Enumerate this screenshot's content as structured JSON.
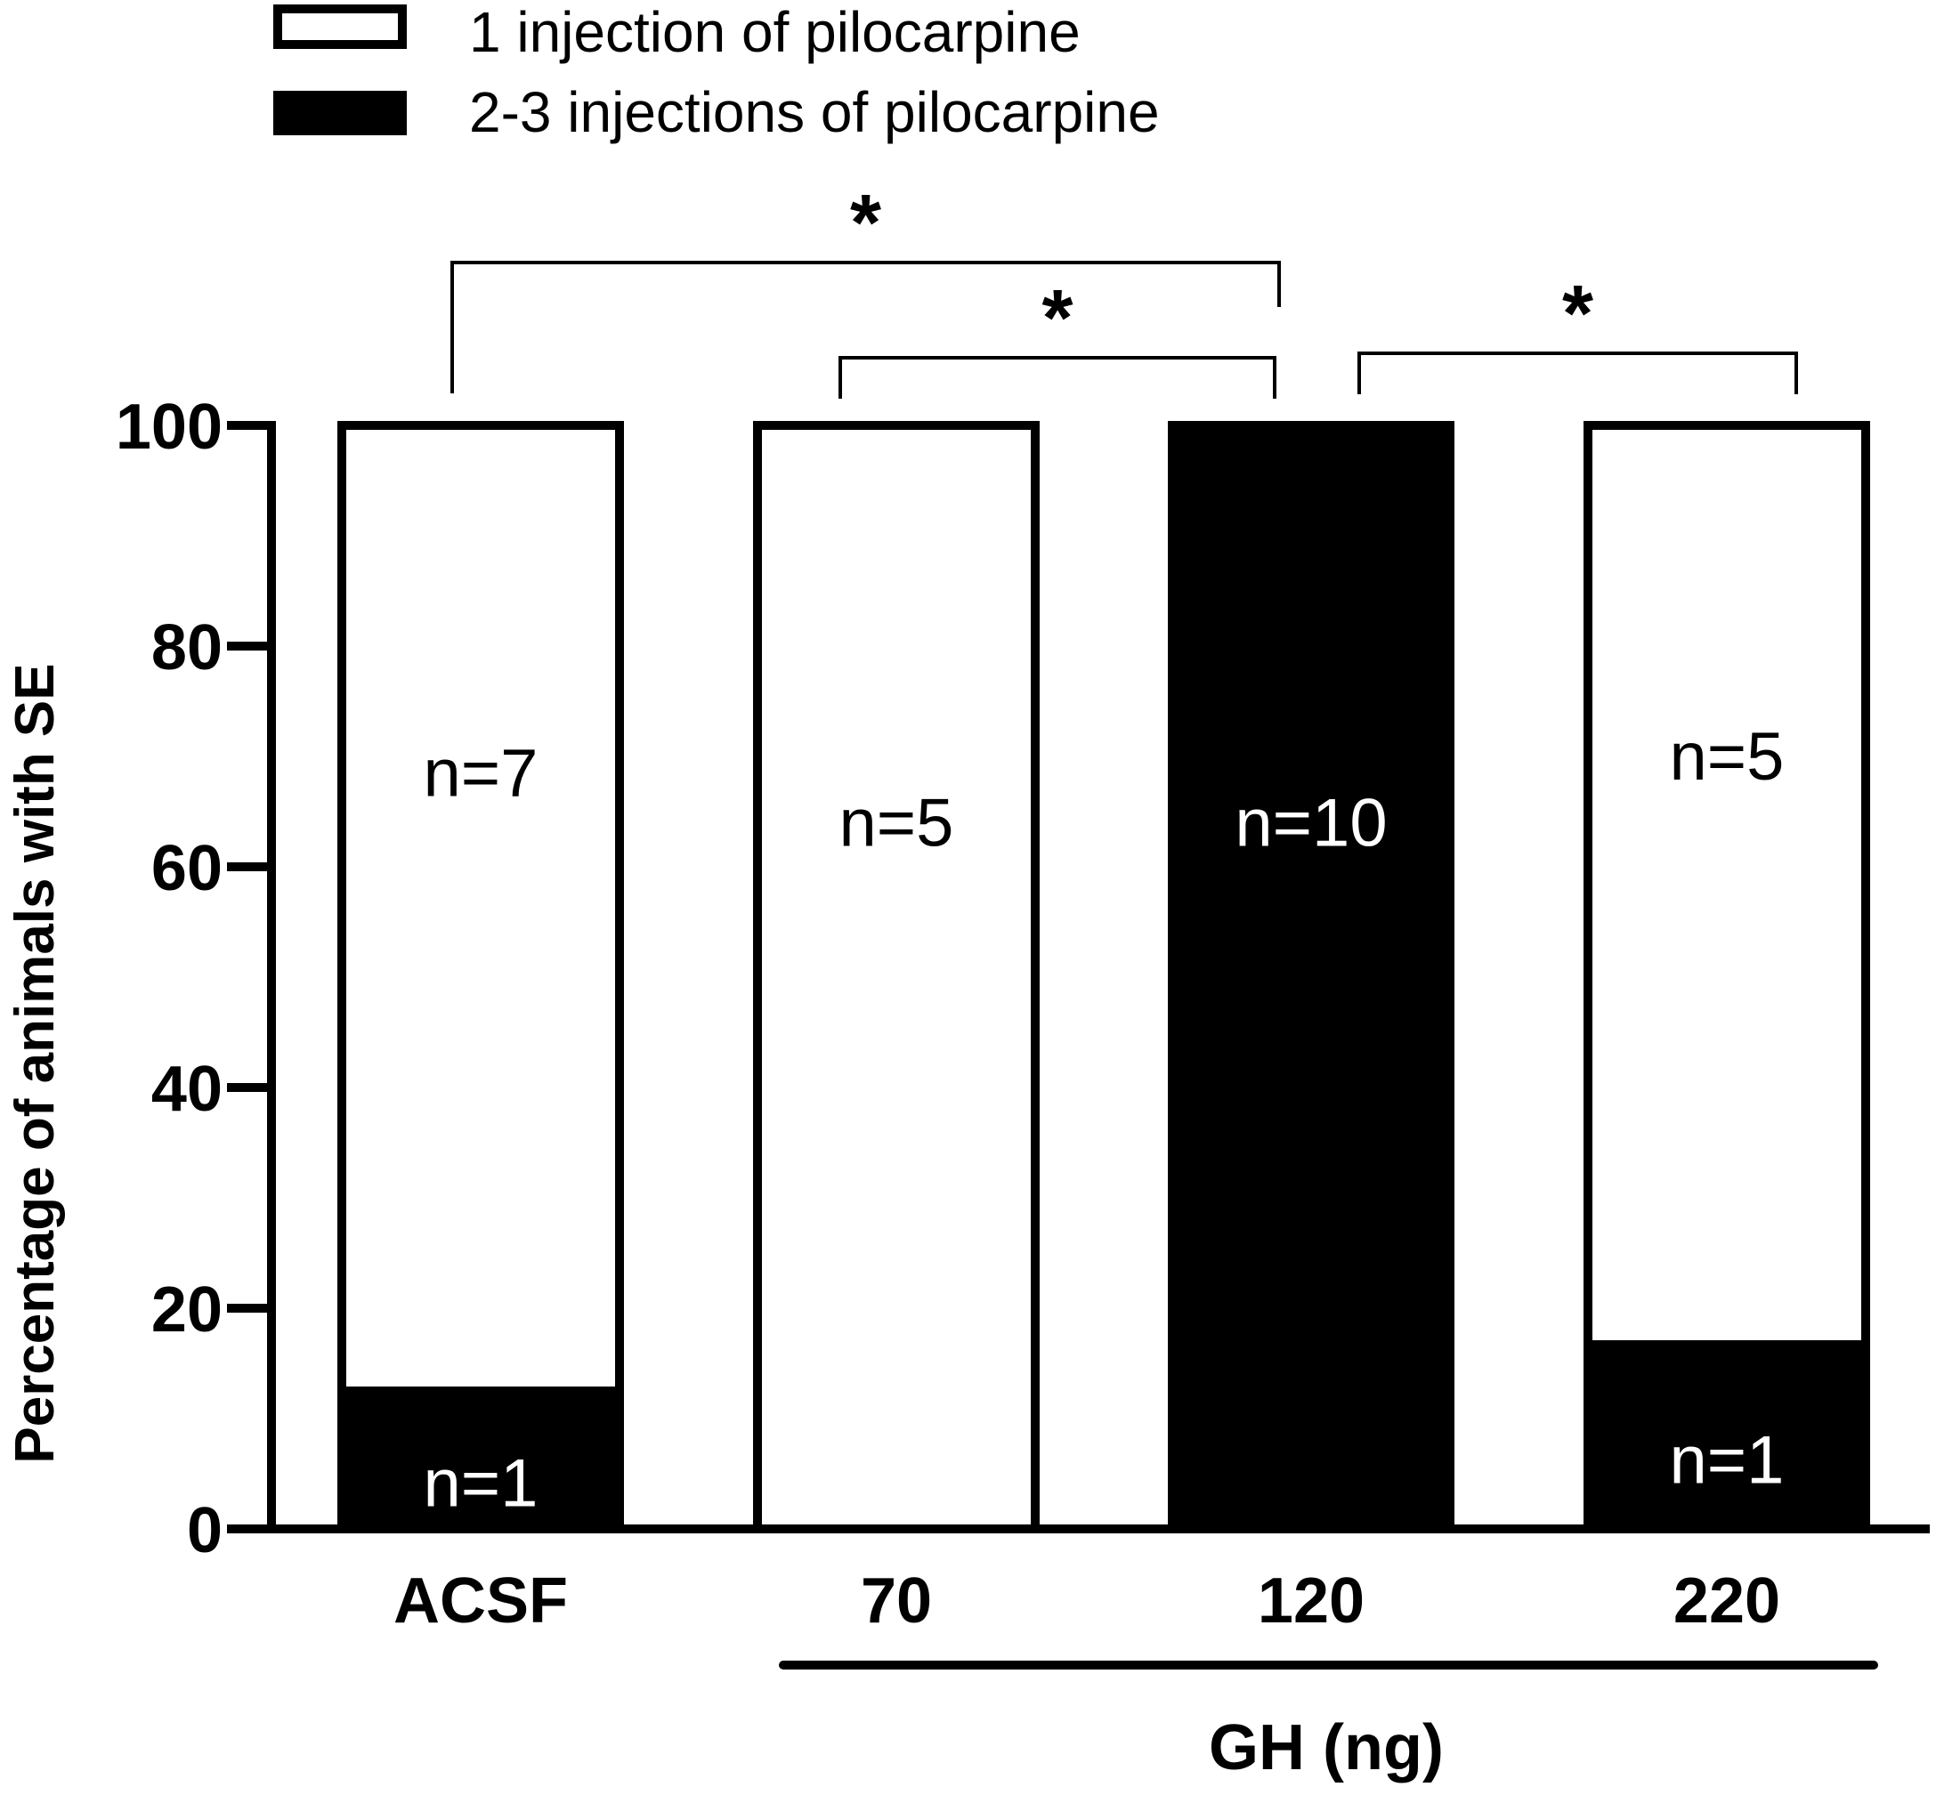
{
  "chart_data": {
    "type": "bar",
    "stacked": true,
    "categories": [
      "ACSF",
      "70",
      "120",
      "220"
    ],
    "series": [
      {
        "name": "2-3 injections of pilocarpine",
        "fill": "#000000",
        "values": [
          12.5,
          0,
          100,
          16.7
        ],
        "n_labels": [
          "n=1",
          "",
          "n=10",
          "n=1"
        ]
      },
      {
        "name": "1 injection of pilocarpine",
        "fill": "#ffffff",
        "values": [
          87.5,
          100,
          0,
          83.3
        ],
        "n_labels": [
          "n=7",
          "n=5",
          "",
          "n=5"
        ]
      }
    ],
    "ylabel": "Percentage of animals with SE",
    "xlabel": "GH (ng)",
    "ylim": [
      0,
      100
    ],
    "yticks": [
      0,
      20,
      40,
      60,
      80,
      100
    ],
    "significance": [
      {
        "from": "ACSF",
        "to": "120",
        "label": "*"
      },
      {
        "from": "70",
        "to": "120",
        "label": "*"
      },
      {
        "from": "120",
        "to": "220",
        "label": "*"
      }
    ],
    "legend_position": "top",
    "grid": false
  }
}
